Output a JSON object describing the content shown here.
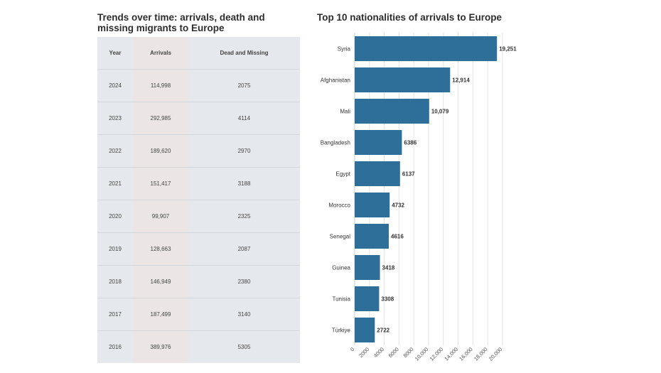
{
  "table": {
    "title": "Trends over time: arrivals, death and missing migrants to Europe",
    "headers": [
      "Year",
      "Arrivals",
      "Dead and Missing"
    ],
    "rows": [
      [
        "2024",
        "114,998",
        "2075"
      ],
      [
        "2023",
        "292,985",
        "4114"
      ],
      [
        "2022",
        "189,620",
        "2970"
      ],
      [
        "2021",
        "151,417",
        "3188"
      ],
      [
        "2020",
        "99,907",
        "2325"
      ],
      [
        "2019",
        "128,663",
        "2087"
      ],
      [
        "2018",
        "146,949",
        "2380"
      ],
      [
        "2017",
        "187,499",
        "3140"
      ],
      [
        "2016",
        "389,976",
        "5305"
      ]
    ]
  },
  "chart_data": {
    "type": "bar",
    "orientation": "horizontal",
    "title": "Top 10 nationalities of arrivals to Europe",
    "categories": [
      "Syria",
      "Afghanistan",
      "Mali",
      "Bangladesh",
      "Egypt",
      "Morocco",
      "Senegal",
      "Guinea",
      "Tunisia",
      "Türkiye"
    ],
    "values": [
      19251,
      12914,
      10079,
      6386,
      6137,
      4732,
      4616,
      3418,
      3308,
      2722
    ],
    "value_labels": [
      "19,251",
      "12,914",
      "10,079",
      "6386",
      "6137",
      "4732",
      "4616",
      "3418",
      "3308",
      "2722"
    ],
    "xlim": [
      0,
      20000
    ],
    "xticks": [
      0,
      2000,
      4000,
      6000,
      8000,
      10000,
      12000,
      14000,
      16000,
      18000,
      20000
    ],
    "xtick_labels": [
      "0",
      "2000",
      "4000",
      "6000",
      "8000",
      "10,000",
      "12,000",
      "14,000",
      "16,000",
      "18,000",
      "20,000"
    ],
    "xlabel": "",
    "ylabel": "",
    "grid": true,
    "bar_color": "#2e6f9a"
  }
}
